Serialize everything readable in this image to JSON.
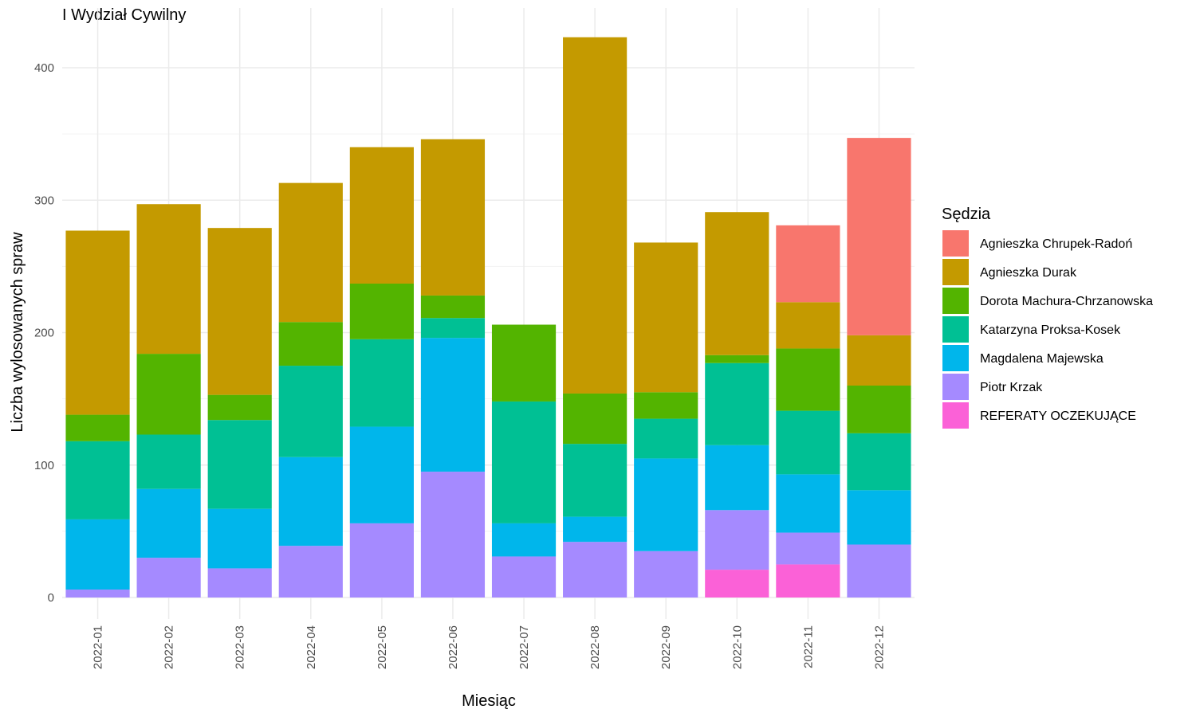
{
  "chart_data": {
    "type": "bar",
    "stacked": true,
    "title": "I Wydział Cywilny",
    "xlabel": "Miesiąc",
    "ylabel": "Liczba wylosowanych spraw",
    "ylim": [
      0,
      430
    ],
    "yticks": [
      0,
      100,
      200,
      300,
      400
    ],
    "grid": true,
    "legend_title": "Sędzia",
    "legend_position": "right",
    "categories": [
      "2022-01",
      "2022-02",
      "2022-03",
      "2022-04",
      "2022-05",
      "2022-06",
      "2022-07",
      "2022-08",
      "2022-09",
      "2022-10",
      "2022-11",
      "2022-12"
    ],
    "stack_order_bottom_to_top": [
      "REFERATY OCZEKUJĄCE",
      "Piotr Krzak",
      "Magdalena Majewska",
      "Katarzyna Proksa-Kosek",
      "Dorota Machura-Chrzanowska",
      "Agnieszka Durak",
      "Agnieszka Chrupek-Radoń"
    ],
    "series": [
      {
        "name": "Agnieszka Chrupek-Radoń",
        "color": "#F8766D",
        "values": [
          0,
          0,
          0,
          0,
          0,
          0,
          0,
          0,
          0,
          0,
          58,
          149
        ]
      },
      {
        "name": "Agnieszka Durak",
        "color": "#C49A00",
        "values": [
          139,
          113,
          126,
          105,
          103,
          118,
          0,
          269,
          113,
          108,
          35,
          38
        ]
      },
      {
        "name": "Dorota Machura-Chrzanowska",
        "color": "#53B400",
        "values": [
          20,
          61,
          19,
          33,
          42,
          17,
          58,
          38,
          20,
          6,
          47,
          36
        ]
      },
      {
        "name": "Katarzyna Proksa-Kosek",
        "color": "#00C094",
        "values": [
          59,
          41,
          67,
          69,
          66,
          15,
          92,
          55,
          30,
          62,
          48,
          43
        ]
      },
      {
        "name": "Magdalena Majewska",
        "color": "#00B6EB",
        "values": [
          53,
          52,
          45,
          67,
          73,
          101,
          25,
          19,
          70,
          49,
          44,
          41
        ]
      },
      {
        "name": "Piotr Krzak",
        "color": "#A58AFF",
        "values": [
          6,
          30,
          22,
          39,
          56,
          95,
          31,
          42,
          35,
          45,
          24,
          40
        ]
      },
      {
        "name": "REFERATY OCZEKUJĄCE",
        "color": "#FB61D7",
        "values": [
          0,
          0,
          0,
          0,
          0,
          0,
          0,
          0,
          0,
          21,
          25,
          0
        ]
      }
    ]
  }
}
